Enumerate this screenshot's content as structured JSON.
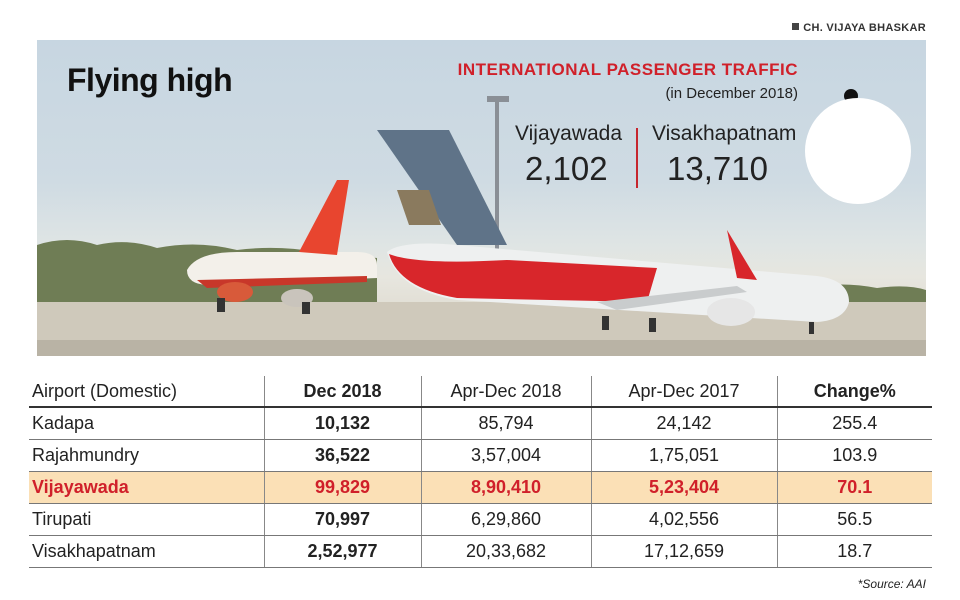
{
  "credit": "CH. VIJAYA BHASKAR",
  "title": "Flying high",
  "international": {
    "heading": "INTERNATIONAL PASSENGER TRAFFIC",
    "subheading": "(in December 2018)",
    "cities": [
      {
        "name": "Vijayawada",
        "value": "2,102"
      },
      {
        "name": "Visakhapatnam",
        "value": "13,710"
      }
    ]
  },
  "icons": {
    "traveller": "traveller-with-suitcase-icon"
  },
  "table": {
    "headers": [
      "Airport (Domestic)",
      "Dec 2018",
      "Apr-Dec 2018",
      "Apr-Dec 2017",
      "Change%"
    ],
    "rows": [
      [
        "Kadapa",
        "10,132",
        "85,794",
        "24,142",
        "255.4"
      ],
      [
        "Rajahmundry",
        "36,522",
        "3,57,004",
        "1,75,051",
        "103.9"
      ],
      [
        "Vijayawada",
        "99,829",
        "8,90,410",
        "5,23,404",
        "70.1"
      ],
      [
        "Tirupati",
        "70,997",
        "6,29,860",
        "4,02,556",
        "56.5"
      ],
      [
        "Visakhapatnam",
        "2,52,977",
        "20,33,682",
        "17,12,659",
        "18.7"
      ]
    ],
    "highlighted_row": "Vijayawada"
  },
  "source": "*Source: AAI",
  "colors": {
    "accent": "#d0202a",
    "highlight": "#fbe0b6"
  }
}
